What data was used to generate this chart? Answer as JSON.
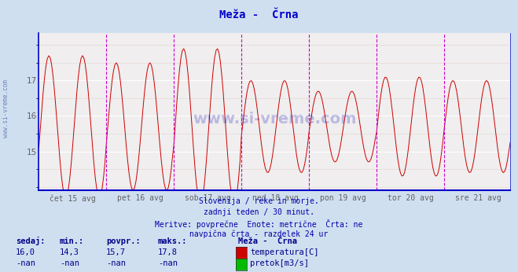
{
  "title": "Meža -  Črna",
  "bg_color": "#d0dff0",
  "plot_bg_color": "#f0eeee",
  "line_color": "#cc0000",
  "grid_color": "#ffffff",
  "grid_minor_color": "#e8d8d8",
  "axis_color": "#0000cc",
  "tick_label_color": "#606060",
  "title_color": "#0000cc",
  "ylim_min": 13.9,
  "ylim_max": 18.35,
  "yticks": [
    15,
    16,
    17
  ],
  "x_day_labels": [
    "čet 15 avg",
    "pet 16 avg",
    "sob 17 avg",
    "ned 18 avg",
    "pon 19 avg",
    "tor 20 avg",
    "sre 21 avg"
  ],
  "vline_color": "#cc00cc",
  "bottom_text_lines": [
    "Slovenija / reke in morje.",
    "zadnji teden / 30 minut.",
    "Meritve: povprečne  Enote: metrične  Črta: ne",
    "navpična črta - razdelek 24 ur"
  ],
  "bottom_text_color": "#0000aa",
  "stats_label_color": "#000088",
  "stats_values_color": "#000088",
  "legend_title": "Meža -  Črna",
  "legend_color1": "#cc0000",
  "legend_color2": "#00bb00",
  "legend_label1": "temperatura[C]",
  "legend_label2": "pretok[m3/s]",
  "sedaj": "16,0",
  "min_val": "14,3",
  "povpr_val": "15,7",
  "maks_val": "17,8",
  "sedaj2": "-nan",
  "min_val2": "-nan",
  "povpr_val2": "-nan",
  "maks_val2": "-nan",
  "n_points": 336,
  "period_days": 7,
  "cycles_per_day": 2.0
}
